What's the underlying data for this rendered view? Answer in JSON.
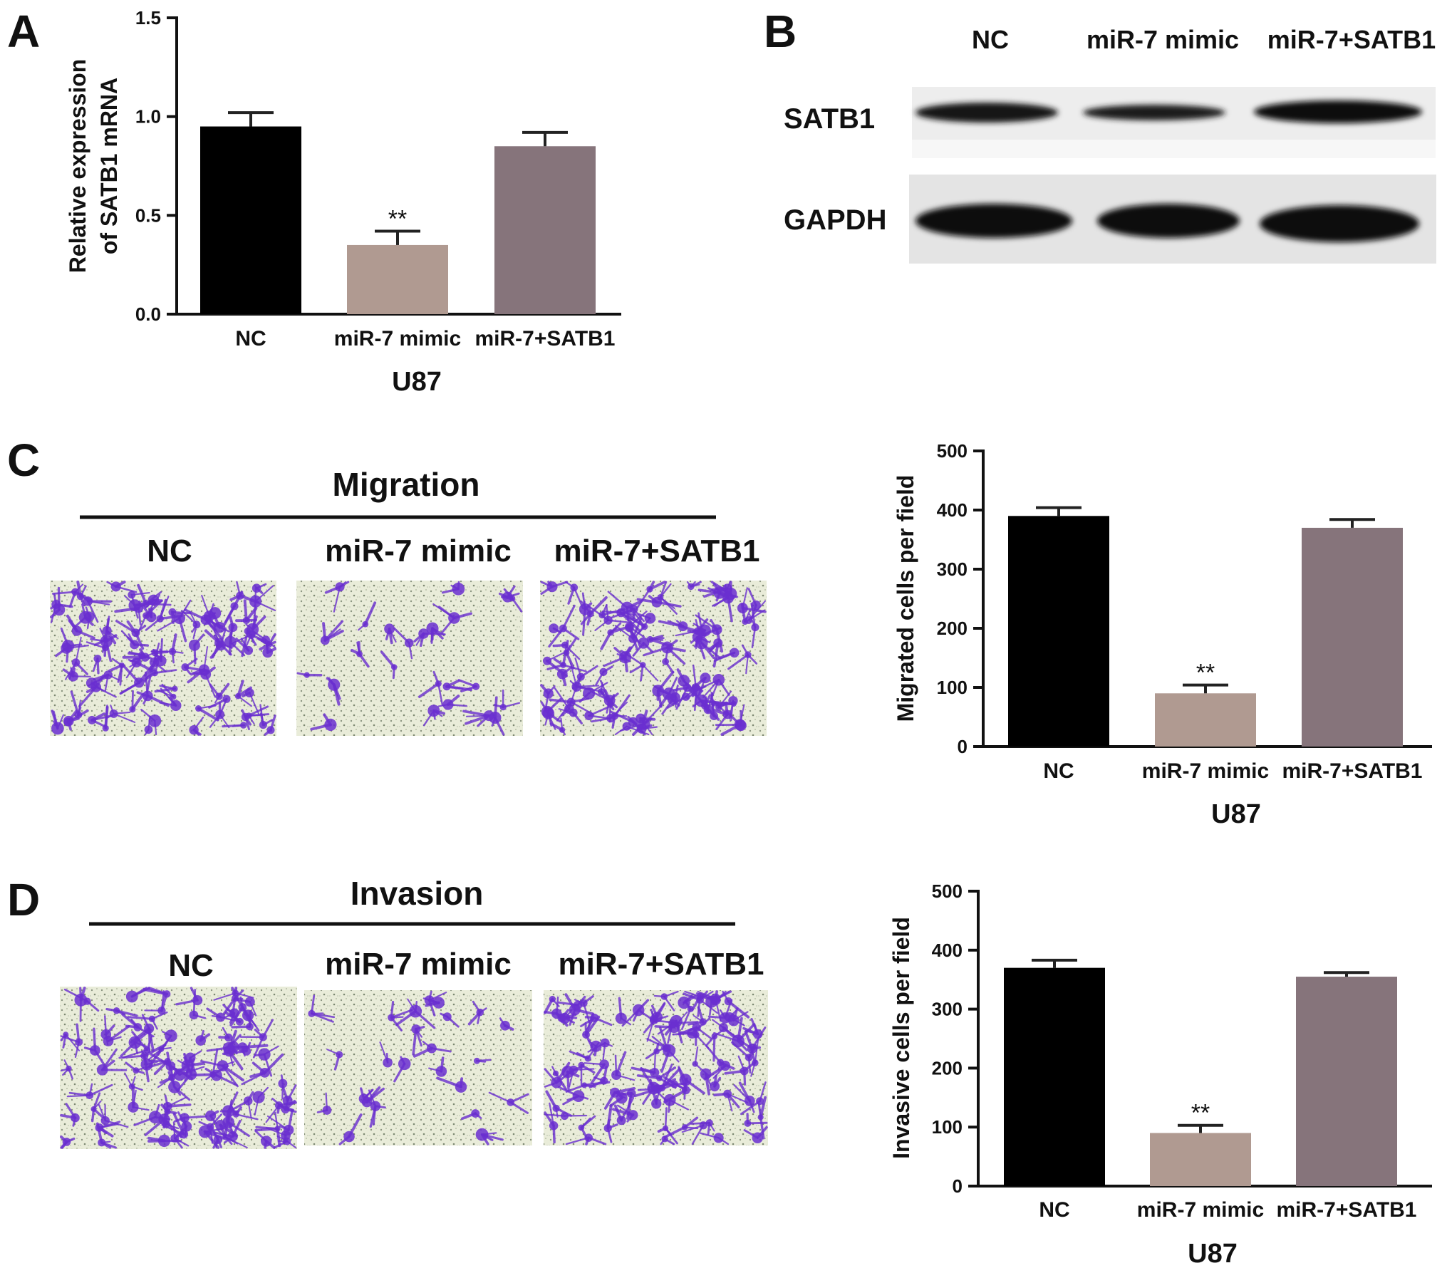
{
  "panels": {
    "A": {
      "letter": "A"
    },
    "B": {
      "letter": "B"
    },
    "C": {
      "letter": "C"
    },
    "D": {
      "letter": "D"
    }
  },
  "colors": {
    "NC": "#000000",
    "miR-7 mimic": "#b09a91",
    "miR-7+SATB1": "#86747b",
    "stain": "#6a2fd0"
  },
  "blot": {
    "lanes": [
      "NC",
      "miR-7 mimic",
      "miR-7+SATB1"
    ],
    "proteins": [
      "SATB1",
      "GAPDH"
    ]
  },
  "migration_images": {
    "title": "Migration",
    "labels": [
      "NC",
      "miR-7 mimic",
      "miR-7+SATB1"
    ],
    "cell_density": [
      1.0,
      0.25,
      1.0
    ]
  },
  "invasion_images": {
    "title": "Invasion",
    "labels": [
      "NC",
      "miR-7 mimic",
      "miR-7+SATB1"
    ],
    "cell_density": [
      1.0,
      0.25,
      1.0
    ]
  },
  "chart_data": [
    {
      "id": "A",
      "type": "bar",
      "categories": [
        "NC",
        "miR-7 mimic",
        "miR-7+SATB1"
      ],
      "values": [
        0.95,
        0.35,
        0.85
      ],
      "errors": [
        0.07,
        0.07,
        0.07
      ],
      "significance": [
        "",
        "**",
        ""
      ],
      "title": "",
      "xlabel": "U87",
      "ylabel": "Relative expression of SATB1 mRNA",
      "ylabel_lines": [
        "Relative expression",
        "of SATB1 mRNA"
      ],
      "ylim": [
        0,
        1.5
      ],
      "yticks": [
        "0.0",
        "0.5",
        "1.0",
        "1.5"
      ],
      "grid": false
    },
    {
      "id": "C",
      "type": "bar",
      "categories": [
        "NC",
        "miR-7 mimic",
        "miR-7+SATB1"
      ],
      "values": [
        390,
        90,
        370
      ],
      "errors": [
        14,
        14,
        14
      ],
      "significance": [
        "",
        "**",
        ""
      ],
      "title": "",
      "xlabel": "U87",
      "ylabel": "Migrated cells per field",
      "ylim": [
        0,
        500
      ],
      "yticks": [
        "0",
        "100",
        "200",
        "300",
        "400",
        "500"
      ],
      "grid": false
    },
    {
      "id": "D",
      "type": "bar",
      "categories": [
        "NC",
        "miR-7 mimic",
        "miR-7+SATB1"
      ],
      "values": [
        370,
        90,
        355
      ],
      "errors": [
        13,
        13,
        7
      ],
      "significance": [
        "",
        "**",
        ""
      ],
      "title": "",
      "xlabel": "U87",
      "ylabel": "Invasive cells per field",
      "ylim": [
        0,
        500
      ],
      "yticks": [
        "0",
        "100",
        "200",
        "300",
        "400",
        "500"
      ],
      "grid": false
    }
  ]
}
